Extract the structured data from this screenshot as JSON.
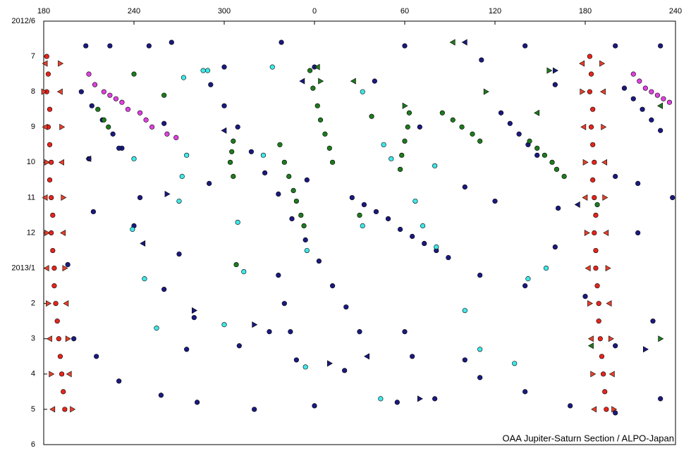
{
  "chart_data": {
    "type": "scatter",
    "footer": "OAA Jupiter-Saturn Section / ALPO-Japan",
    "xlim": [
      180,
      600
    ],
    "xticks": [
      180,
      240,
      300,
      {
        "value": 360,
        "label": "0"
      },
      {
        "value": 420,
        "label": "60"
      },
      {
        "value": 480,
        "label": "120"
      },
      {
        "value": 540,
        "label": "180"
      },
      {
        "value": 600,
        "label": "240"
      }
    ],
    "ylim": [
      0,
      12
    ],
    "y_inverted": true,
    "yticks": [
      {
        "value": 0,
        "label": "2012/6"
      },
      {
        "value": 1,
        "label": "7"
      },
      {
        "value": 2,
        "label": "8"
      },
      {
        "value": 3,
        "label": "9"
      },
      {
        "value": 4,
        "label": "10"
      },
      {
        "value": 5,
        "label": "11"
      },
      {
        "value": 6,
        "label": "12"
      },
      {
        "value": 7,
        "label": "2013/1"
      },
      {
        "value": 8,
        "label": "2"
      },
      {
        "value": 9,
        "label": "3"
      },
      {
        "value": 10,
        "label": "4"
      },
      {
        "value": 11,
        "label": "5"
      },
      {
        "value": 12,
        "label": "6"
      }
    ],
    "series": [
      {
        "color": "#1a1a80",
        "marker": "circle",
        "x": [
          291,
          300,
          309,
          318,
          327,
          336,
          345,
          354,
          363,
          372,
          381,
          390,
          385,
          393,
          401,
          409,
          417,
          425,
          433,
          441,
          449,
          205,
          212,
          219,
          226,
          232,
          566,
          572,
          578,
          584,
          590,
          484,
          490,
          496,
          502,
          508,
          336,
          340,
          344,
          348,
          208,
          224,
          250,
          265,
          338,
          420,
          590,
          560,
          500,
          471,
          300,
          360,
          400,
          520,
          260,
          230,
          244,
          196,
          200,
          230,
          258,
          282,
          320,
          360,
          415,
          440,
          470,
          500,
          530,
          560,
          590,
          598,
          575,
          520,
          470,
          500,
          540,
          260,
          280,
          310,
          330,
          420,
          425,
          380,
          460,
          560,
          585,
          240,
          270,
          290,
          460,
          480,
          522,
          213,
          210,
          355,
          430,
          560,
          575,
          215,
          275
        ],
        "y": [
          1.8,
          2.4,
          3.0,
          3.7,
          4.3,
          4.9,
          5.6,
          6.2,
          6.8,
          7.5,
          8.1,
          8.8,
          5.0,
          5.2,
          5.4,
          5.6,
          5.9,
          6.1,
          6.3,
          6.5,
          6.7,
          2.0,
          2.4,
          2.8,
          3.2,
          3.6,
          1.9,
          2.2,
          2.5,
          2.8,
          3.1,
          2.6,
          2.9,
          3.2,
          3.5,
          3.8,
          7.2,
          8.0,
          8.8,
          9.6,
          0.7,
          0.7,
          0.7,
          0.6,
          0.6,
          0.7,
          0.7,
          0.7,
          0.7,
          1.1,
          1.3,
          1.3,
          1.7,
          1.8,
          2.9,
          3.6,
          5.0,
          6.9,
          9.0,
          10.2,
          10.6,
          10.8,
          11.0,
          10.9,
          10.8,
          10.7,
          10.1,
          10.5,
          10.9,
          11.1,
          10.7,
          5.0,
          6.0,
          6.4,
          7.2,
          7.5,
          7.8,
          7.6,
          8.4,
          9.2,
          8.8,
          8.8,
          9.5,
          9.9,
          9.6,
          9.2,
          8.5,
          5.8,
          6.6,
          4.6,
          4.7,
          5.1,
          5.3,
          5.4,
          3.9,
          4.5,
          3.0,
          4.4,
          4.6,
          9.5,
          9.3
        ]
      },
      {
        "color": "#1e7a1e",
        "marker": "circle",
        "x": [
          216,
          220,
          223,
          306,
          305,
          304,
          306,
          337,
          340,
          343,
          346,
          348,
          351,
          353,
          357,
          359,
          362,
          364,
          367,
          370,
          372,
          423,
          422,
          420,
          418,
          417,
          445,
          452,
          458,
          465,
          470,
          503,
          508,
          513,
          518,
          521,
          526,
          548,
          240,
          260,
          308,
          390,
          398
        ],
        "y": [
          2.5,
          2.8,
          3.0,
          3.4,
          3.7,
          4.0,
          4.4,
          3.5,
          4.0,
          4.4,
          4.8,
          5.1,
          5.5,
          5.8,
          1.4,
          1.9,
          2.4,
          2.8,
          3.2,
          3.6,
          4.0,
          2.6,
          3.0,
          3.4,
          3.8,
          4.2,
          2.6,
          2.8,
          3.0,
          3.2,
          3.4,
          3.4,
          3.6,
          3.8,
          4.0,
          4.2,
          4.4,
          5.2,
          1.5,
          2.1,
          6.9,
          5.5,
          2.7
        ]
      },
      {
        "color": "#40e8e8",
        "marker": "circle",
        "x": [
          273,
          286,
          289,
          332,
          392,
          406,
          411,
          326,
          240,
          272,
          239,
          270,
          309,
          313,
          247,
          255,
          300,
          355,
          392,
          427,
          432,
          441,
          460,
          470,
          440,
          514,
          502,
          354,
          404,
          493,
          275
        ],
        "y": [
          1.6,
          1.4,
          1.4,
          1.3,
          2.0,
          3.5,
          3.9,
          3.8,
          3.9,
          4.4,
          5.9,
          5.1,
          5.7,
          7.1,
          7.3,
          8.7,
          8.6,
          6.5,
          5.8,
          5.1,
          5.8,
          6.4,
          8.2,
          9.3,
          4.1,
          7.0,
          7.3,
          9.8,
          10.7,
          9.7,
          3.8
        ]
      },
      {
        "color": "#e040e0",
        "marker": "circle",
        "x": [
          210,
          214,
          220,
          224,
          228,
          232,
          236,
          244,
          248,
          252,
          262,
          268,
          572,
          576,
          580,
          584,
          588,
          592,
          596
        ],
        "y": [
          1.5,
          1.8,
          2.0,
          2.1,
          2.2,
          2.3,
          2.5,
          2.6,
          2.8,
          3.0,
          3.2,
          3.3,
          1.5,
          1.7,
          1.9,
          2.0,
          2.1,
          2.2,
          2.3
        ]
      },
      {
        "color": "#e8241c",
        "marker": "circle",
        "x": [
          182,
          183,
          182,
          184,
          183,
          184,
          185,
          184,
          185,
          186,
          185,
          186,
          187,
          187,
          188,
          189,
          190,
          191,
          192,
          193,
          194,
          543,
          544,
          543,
          545,
          544,
          545,
          546,
          545,
          546,
          547,
          546,
          547,
          547,
          548,
          549,
          549,
          550,
          551,
          552,
          553,
          554
        ],
        "y": [
          1.0,
          1.5,
          2.0,
          2.5,
          3.0,
          3.5,
          4.0,
          4.5,
          5.0,
          5.5,
          6.0,
          6.5,
          7.0,
          7.5,
          8.0,
          8.5,
          9.0,
          9.5,
          10.0,
          10.5,
          11.0,
          1.0,
          1.5,
          2.0,
          2.5,
          3.0,
          3.5,
          4.0,
          4.5,
          5.0,
          5.5,
          6.0,
          6.5,
          7.0,
          7.5,
          8.0,
          8.5,
          9.0,
          9.5,
          10.0,
          10.5,
          11.0
        ]
      },
      {
        "color": "#e8402a",
        "marker": "triangle",
        "x": [
          181,
          180,
          181,
          182,
          181,
          182,
          182,
          183,
          184,
          185,
          186,
          191,
          191,
          192,
          192,
          193,
          193,
          194,
          195,
          196,
          197,
          199,
          538,
          538,
          539,
          540,
          540,
          541,
          542,
          543,
          544,
          545,
          546,
          551,
          552,
          552,
          553,
          553,
          554,
          555,
          556,
          557,
          558,
          559
        ],
        "y": [
          1.2,
          2,
          3,
          4,
          5,
          6,
          7,
          8,
          9,
          10,
          11,
          1.2,
          2,
          3,
          4,
          5,
          6,
          7,
          8,
          9,
          10,
          11,
          1.2,
          2,
          3,
          4,
          5,
          6,
          7,
          8,
          9,
          10,
          11,
          1.2,
          2,
          3,
          4,
          5,
          6,
          7,
          8,
          9,
          10,
          11
        ]
      },
      {
        "color": "#1a1a80",
        "marker": "triangle",
        "x": [
          210,
          262,
          300,
          320,
          352,
          370,
          395,
          430,
          460,
          520,
          535,
          580,
          246,
          280
        ],
        "y": [
          3.9,
          4.9,
          3.1,
          8.6,
          1.7,
          9.7,
          9.5,
          10.7,
          0.6,
          1.4,
          5.2,
          9.3,
          6.3,
          8.2
        ]
      },
      {
        "color": "#1e7a1e",
        "marker": "triangle",
        "x": [
          362,
          364,
          386,
          420,
          452,
          474,
          508,
          516,
          544,
          590,
          590
        ],
        "y": [
          1.3,
          1.7,
          1.7,
          2.4,
          0.6,
          2.0,
          2.6,
          1.4,
          9.2,
          9.0,
          2.4
        ]
      }
    ]
  }
}
